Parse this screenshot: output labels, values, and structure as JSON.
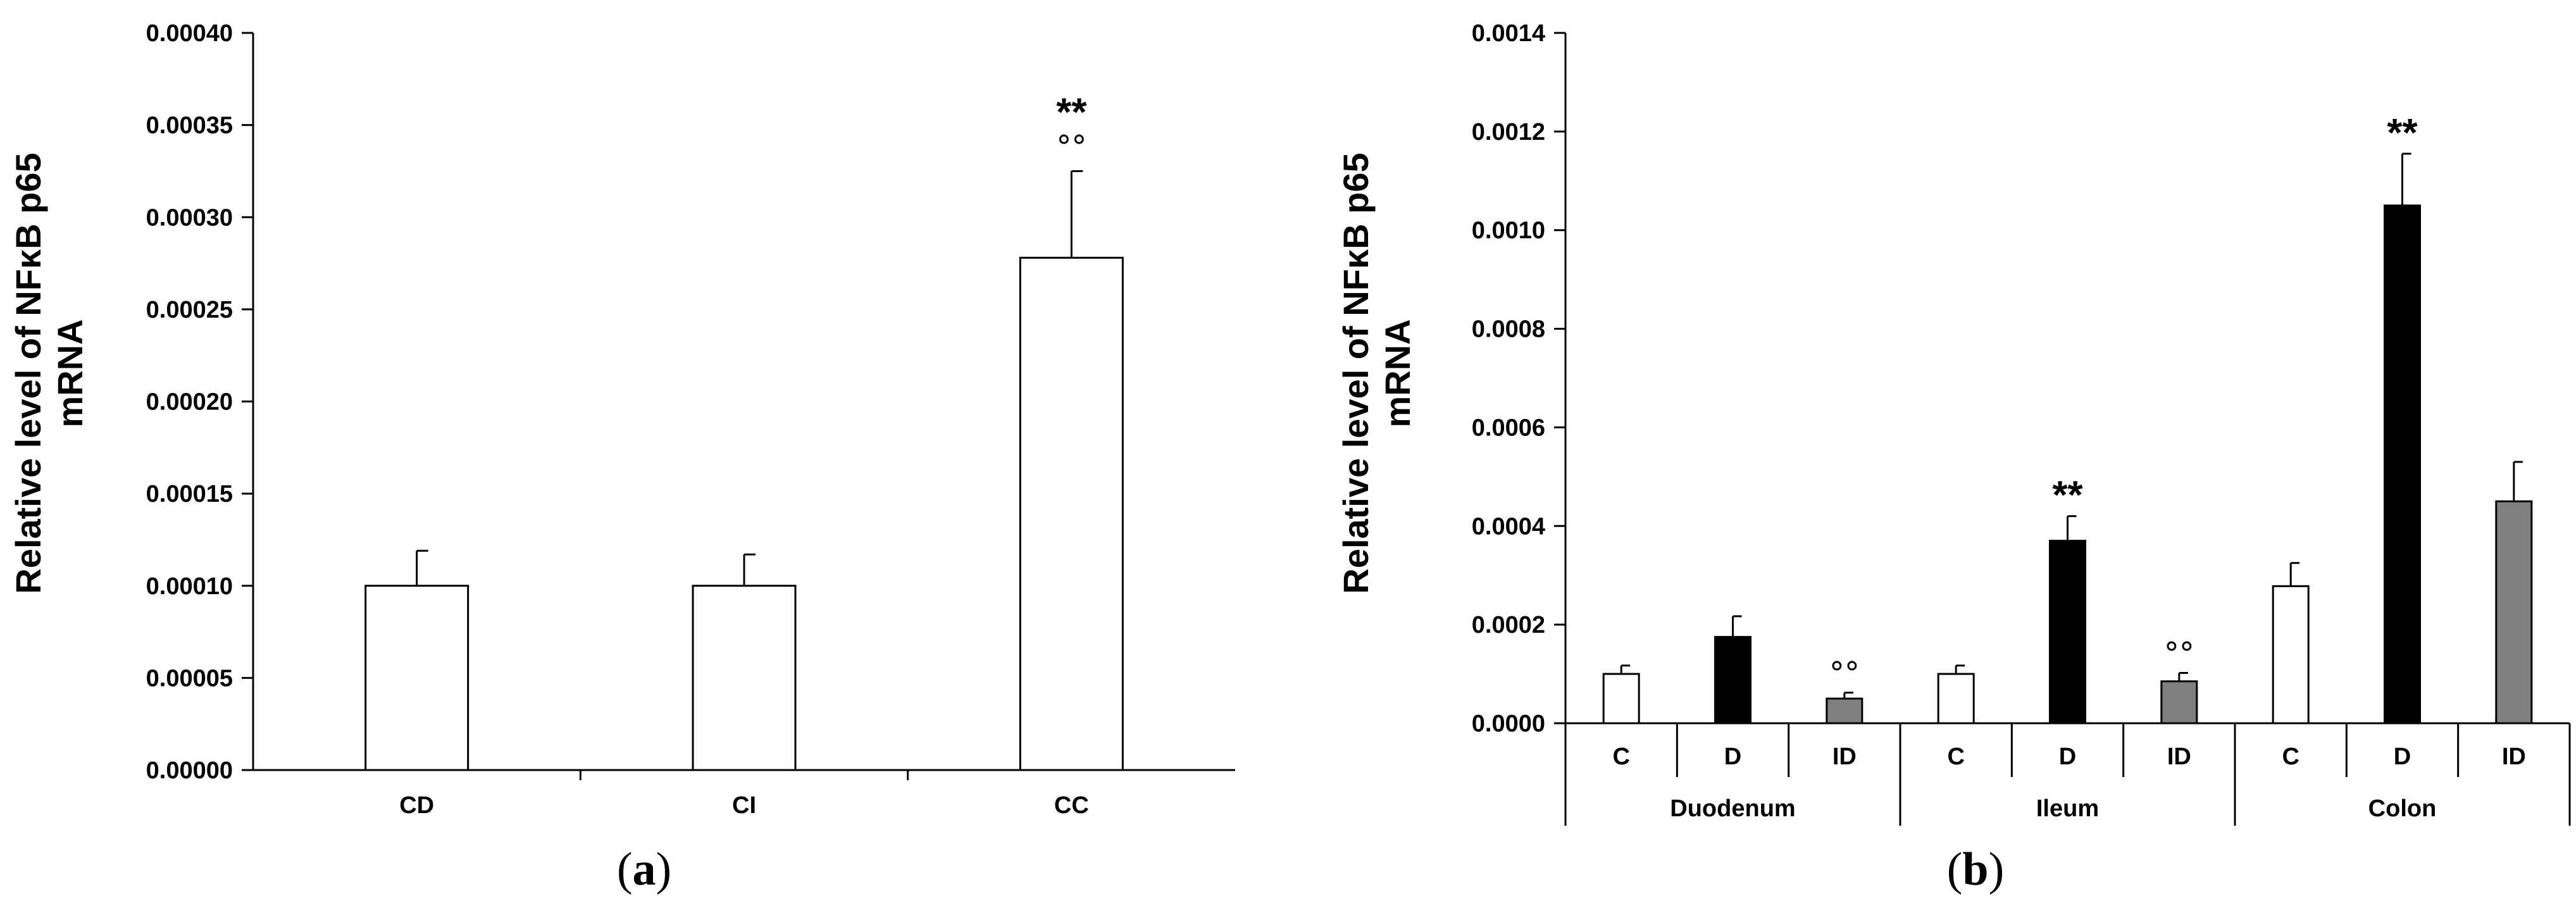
{
  "chart_data": [
    {
      "type": "bar",
      "panel_label": "a",
      "ylabel_line1": "Relative level of NFκB p65",
      "ylabel_line2": "mRNA",
      "ylim": [
        0,
        0.0004
      ],
      "yticks": [
        "0.00000",
        "0.00005",
        "0.00010",
        "0.00015",
        "0.00020",
        "0.00025",
        "0.00030",
        "0.00035",
        "0.00040"
      ],
      "categories": [
        "CD",
        "CI",
        "CC"
      ],
      "values": [
        0.0001,
        0.0001,
        0.000278
      ],
      "errors": [
        1.9e-05,
        1.7e-05,
        4.7e-05
      ],
      "bar_colors": [
        "#ffffff",
        "#ffffff",
        "#ffffff"
      ],
      "annotations": [
        "",
        "",
        "**\n°°"
      ]
    },
    {
      "type": "bar",
      "panel_label": "b",
      "ylabel_line1": "Relative level of NFκB p65",
      "ylabel_line2": "mRNA",
      "ylim": [
        0,
        0.0014
      ],
      "yticks": [
        "0.0000",
        "0.0002",
        "0.0004",
        "0.0006",
        "0.0008",
        "0.0010",
        "0.0012",
        "0.0014"
      ],
      "categories": [
        "C",
        "D",
        "ID",
        "C",
        "D",
        "ID",
        "C",
        "D",
        "ID"
      ],
      "groups": [
        "Duodenum",
        "Ileum",
        "Colon"
      ],
      "values": [
        0.0001,
        0.000175,
        5e-05,
        0.0001,
        0.00037,
        8.5e-05,
        0.000278,
        0.00105,
        0.00045
      ],
      "errors": [
        1.7e-05,
        4.2e-05,
        1.2e-05,
        1.7e-05,
        5e-05,
        1.7e-05,
        4.7e-05,
        0.000105,
        8e-05
      ],
      "bar_colors": [
        "#ffffff",
        "#000000",
        "#808080",
        "#ffffff",
        "#000000",
        "#808080",
        "#ffffff",
        "#000000",
        "#808080"
      ],
      "annotations": [
        "",
        "",
        "°°",
        "",
        "**",
        "°°",
        "",
        "**",
        ""
      ]
    }
  ]
}
